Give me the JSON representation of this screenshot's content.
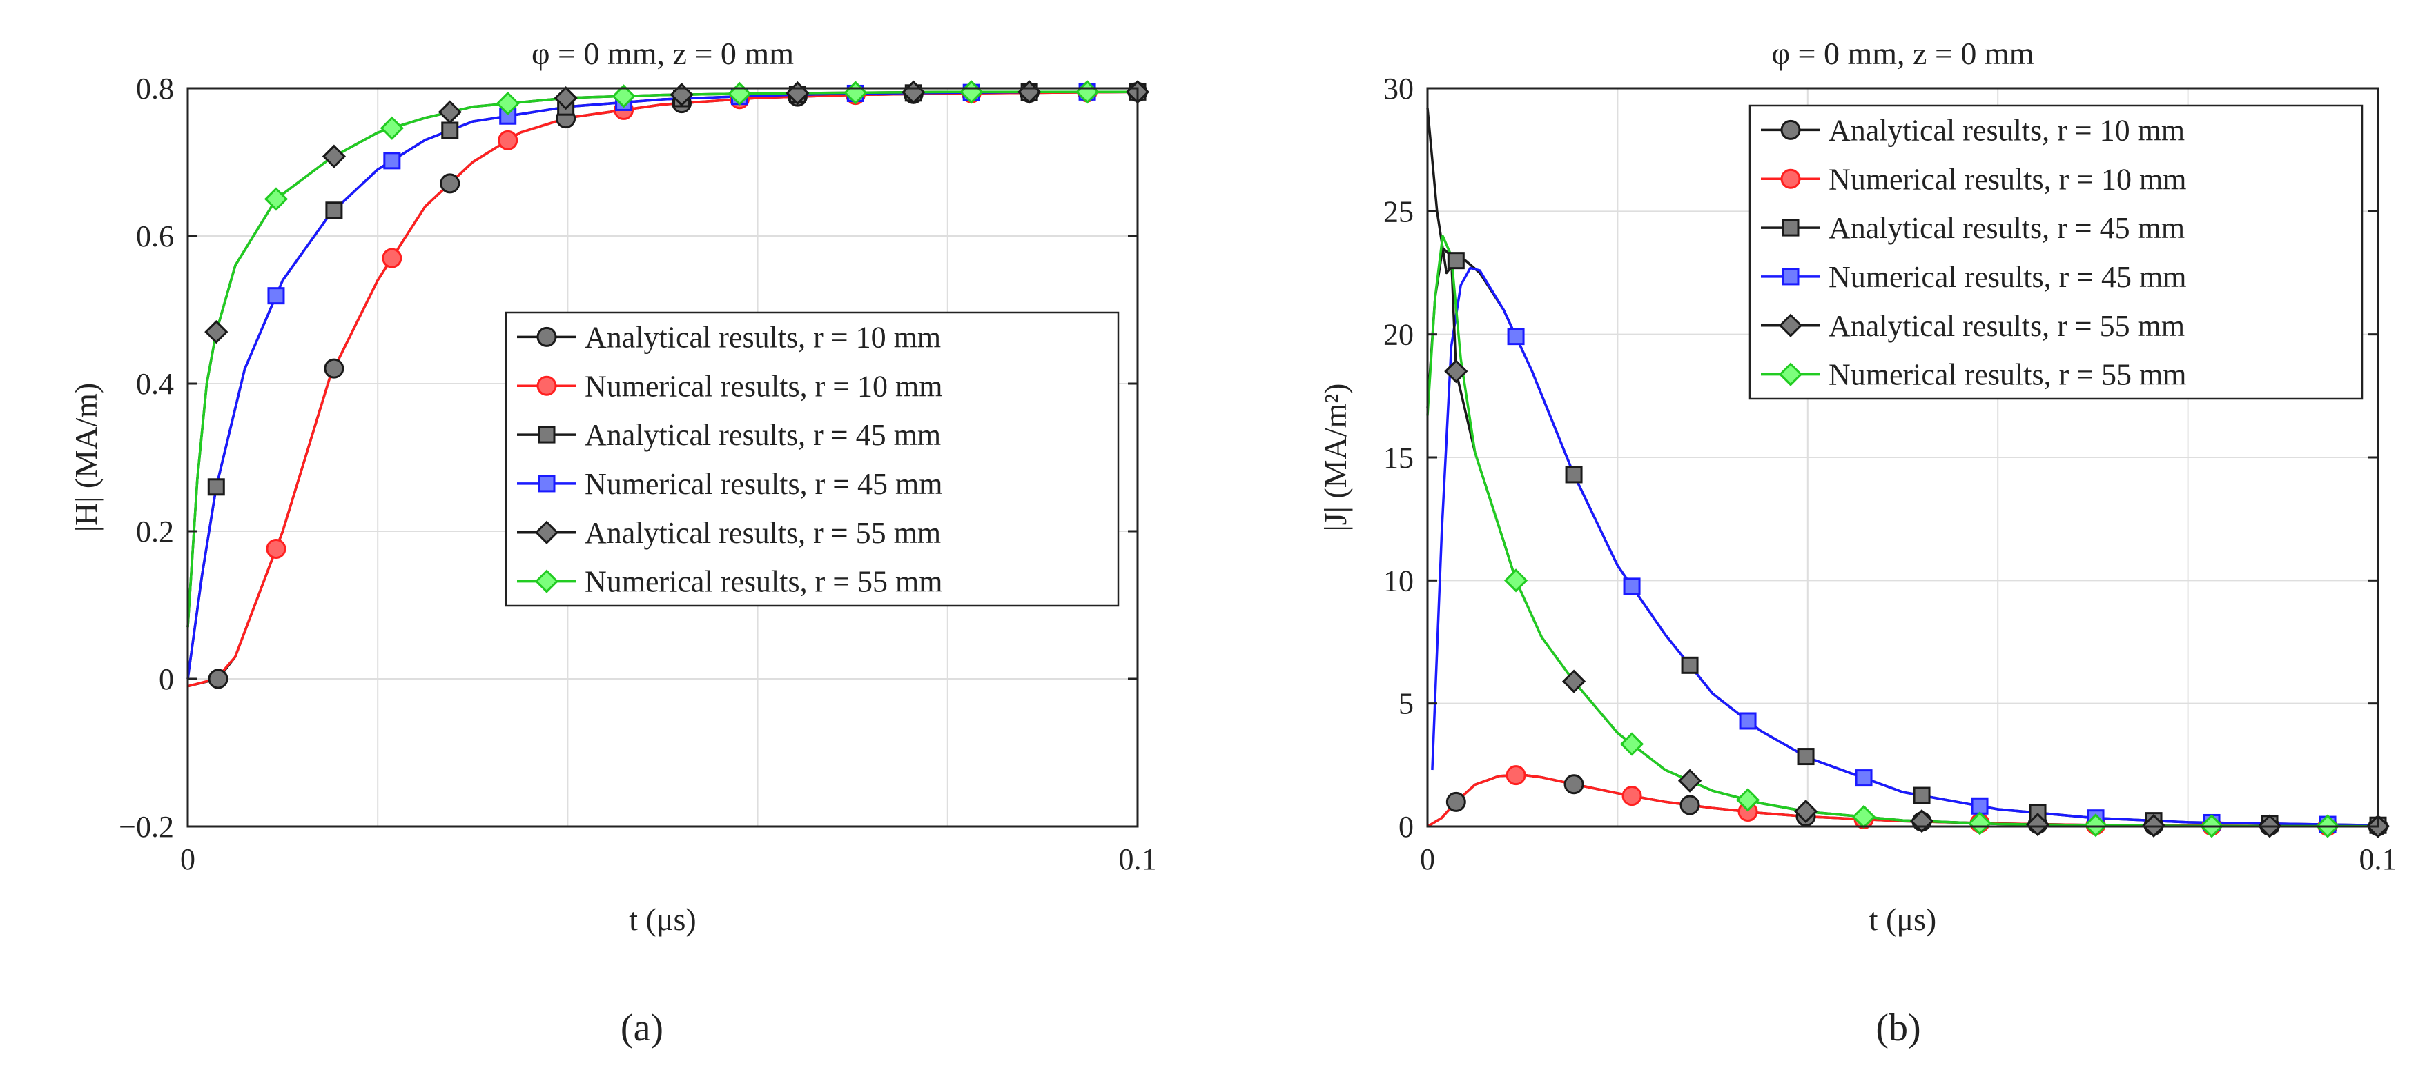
{
  "figure": {
    "colors": {
      "analytical_edge": "#1a1a1a",
      "gray_fill": "#7a7a7a",
      "red": "#ff2020",
      "red_fill": "#ff6666",
      "blue": "#1a1aff",
      "blue_fill": "#6f7cff",
      "green": "#22cc22",
      "green_fill": "#7cff7c",
      "grid": "#dedede"
    }
  },
  "chart_data": [
    {
      "type": "line",
      "panel_label": "(a)",
      "panel_letter": "a",
      "title": "φ = 0 mm, z = 0 mm",
      "xlabel": "t (μs)",
      "ylabel": "|H| (MA/m)",
      "xlim": [
        0,
        0.1
      ],
      "ylim": [
        -0.2,
        0.8
      ],
      "x_ticks": [
        0,
        0.1
      ],
      "y_ticks": [
        -0.2,
        0,
        0.2,
        0.4,
        0.6,
        0.8
      ],
      "x_tick_labels": [
        "0",
        "0.1"
      ],
      "y_tick_labels": [
        "−0.2",
        "0",
        "0.2",
        "0.4",
        "0.6",
        "0.8"
      ],
      "x_grid": [
        0.02,
        0.04,
        0.06,
        0.08,
        0.1
      ],
      "legend_position": "right",
      "series": [
        {
          "name": "Analytical results, r = 10 mm",
          "marker": "circle",
          "line": "#1a1a1a",
          "fill": "#7a7a7a",
          "marker_x": [
            0.0032,
            0.0154,
            0.0276,
            0.0398,
            0.052,
            0.0642,
            0.0764,
            0.0886,
            0.1
          ],
          "x": [
            0,
            0.0032,
            0.005,
            0.01,
            0.015,
            0.02,
            0.025,
            0.03,
            0.035,
            0.04,
            0.05,
            0.06,
            0.07,
            0.08,
            0.09,
            0.1
          ],
          "y": [
            -0.01,
            0.0,
            0.03,
            0.2,
            0.41,
            0.54,
            0.64,
            0.7,
            0.74,
            0.76,
            0.778,
            0.787,
            0.791,
            0.793,
            0.794,
            0.795
          ]
        },
        {
          "name": "Numerical results, r = 10 mm",
          "marker": "circle",
          "line": "#ff2020",
          "fill": "#ff6666",
          "marker_x": [
            0.0093,
            0.0215,
            0.0337,
            0.0459,
            0.0581,
            0.0703,
            0.0825,
            0.0947
          ],
          "x": [
            0,
            0.003,
            0.005,
            0.01,
            0.015,
            0.02,
            0.025,
            0.03,
            0.035,
            0.04,
            0.05,
            0.06,
            0.07,
            0.08,
            0.09,
            0.1
          ],
          "y": [
            -0.01,
            0.0,
            0.03,
            0.2,
            0.41,
            0.54,
            0.64,
            0.7,
            0.74,
            0.76,
            0.778,
            0.787,
            0.791,
            0.793,
            0.794,
            0.795
          ]
        },
        {
          "name": "Analytical results, r = 45 mm",
          "marker": "square",
          "line": "#1a1a1a",
          "fill": "#7a7a7a",
          "marker_x": [
            0.003,
            0.0154,
            0.0276,
            0.0398,
            0.052,
            0.0642,
            0.0764,
            0.0886,
            0.1
          ],
          "x": [
            0,
            0.0015,
            0.003,
            0.006,
            0.01,
            0.015,
            0.02,
            0.025,
            0.03,
            0.04,
            0.05,
            0.06,
            0.07,
            0.08,
            0.09,
            0.1
          ],
          "y": [
            0.0,
            0.14,
            0.26,
            0.42,
            0.54,
            0.63,
            0.69,
            0.73,
            0.755,
            0.775,
            0.785,
            0.79,
            0.793,
            0.794,
            0.795,
            0.795
          ]
        },
        {
          "name": "Numerical results, r = 45 mm",
          "marker": "square",
          "line": "#1a1aff",
          "fill": "#6f7cff",
          "marker_x": [
            0.0093,
            0.0215,
            0.0337,
            0.0459,
            0.0581,
            0.0703,
            0.0825,
            0.0947
          ],
          "x": [
            0,
            0.0015,
            0.003,
            0.006,
            0.01,
            0.015,
            0.02,
            0.025,
            0.03,
            0.04,
            0.05,
            0.06,
            0.07,
            0.08,
            0.09,
            0.1
          ],
          "y": [
            0.0,
            0.14,
            0.26,
            0.42,
            0.54,
            0.63,
            0.69,
            0.73,
            0.755,
            0.775,
            0.785,
            0.79,
            0.793,
            0.794,
            0.795,
            0.795
          ]
        },
        {
          "name": "Analytical results, r = 55 mm",
          "marker": "diamond",
          "line": "#1a1a1a",
          "fill": "#7a7a7a",
          "marker_x": [
            0.003,
            0.0154,
            0.0276,
            0.0398,
            0.052,
            0.0642,
            0.0764,
            0.0886,
            0.1
          ],
          "x": [
            0,
            0.001,
            0.002,
            0.003,
            0.005,
            0.0093,
            0.015,
            0.02,
            0.025,
            0.03,
            0.04,
            0.05,
            0.06,
            0.07,
            0.08,
            0.1
          ],
          "y": [
            0.07,
            0.27,
            0.4,
            0.47,
            0.56,
            0.65,
            0.705,
            0.74,
            0.76,
            0.775,
            0.787,
            0.791,
            0.793,
            0.794,
            0.795,
            0.795
          ]
        },
        {
          "name": "Numerical results, r = 55 mm",
          "marker": "diamond",
          "line": "#22cc22",
          "fill": "#7cff7c",
          "marker_x": [
            0.0093,
            0.0215,
            0.0337,
            0.0459,
            0.0581,
            0.0703,
            0.0825,
            0.0947
          ],
          "x": [
            0,
            0.001,
            0.002,
            0.003,
            0.005,
            0.0093,
            0.015,
            0.02,
            0.025,
            0.03,
            0.04,
            0.05,
            0.06,
            0.07,
            0.08,
            0.1
          ],
          "y": [
            0.07,
            0.27,
            0.4,
            0.47,
            0.56,
            0.65,
            0.705,
            0.74,
            0.76,
            0.775,
            0.787,
            0.791,
            0.793,
            0.794,
            0.795,
            0.795
          ]
        }
      ]
    },
    {
      "type": "line",
      "panel_label": "(b)",
      "panel_letter": "b",
      "title": "φ = 0 mm, z = 0 mm",
      "xlabel": "t (μs)",
      "ylabel": "|J| (MA/m²)",
      "xlim": [
        0,
        0.1
      ],
      "ylim": [
        0,
        30
      ],
      "x_ticks": [
        0,
        0.1
      ],
      "y_ticks": [
        0,
        5,
        10,
        15,
        20,
        25,
        30
      ],
      "x_tick_labels": [
        "0",
        "0.1"
      ],
      "y_tick_labels": [
        "0",
        "5",
        "10",
        "15",
        "20",
        "25",
        "30"
      ],
      "x_grid": [
        0.02,
        0.04,
        0.06,
        0.08,
        0.1
      ],
      "legend_position": "top-right",
      "series": [
        {
          "name": "Analytical results, r = 10 mm",
          "marker": "circle",
          "line": "#1a1a1a",
          "fill": "#7a7a7a",
          "marker_x": [
            0.003,
            0.0154,
            0.0276,
            0.0398,
            0.052,
            0.0642,
            0.0764,
            0.0886,
            0.1
          ],
          "x": [
            0,
            0.0015,
            0.003,
            0.005,
            0.0075,
            0.01,
            0.012,
            0.015,
            0.02,
            0.025,
            0.03,
            0.035,
            0.04,
            0.05,
            0.06,
            0.07,
            0.08,
            0.1
          ],
          "y": [
            0,
            0.35,
            1.0,
            1.7,
            2.05,
            2.1,
            2.0,
            1.75,
            1.35,
            1.0,
            0.75,
            0.55,
            0.4,
            0.22,
            0.12,
            0.06,
            0.03,
            0.01
          ]
        },
        {
          "name": "Numerical results, r = 10 mm",
          "marker": "circle",
          "line": "#ff2020",
          "fill": "#ff6666",
          "marker_x": [
            0.0093,
            0.0215,
            0.0337,
            0.0459,
            0.0581,
            0.0703,
            0.0825,
            0.0947
          ],
          "x": [
            0,
            0.0015,
            0.003,
            0.005,
            0.0075,
            0.01,
            0.012,
            0.015,
            0.02,
            0.025,
            0.03,
            0.035,
            0.04,
            0.05,
            0.06,
            0.07,
            0.08,
            0.1
          ],
          "y": [
            0,
            0.35,
            1.0,
            1.7,
            2.05,
            2.1,
            2.0,
            1.75,
            1.35,
            1.0,
            0.75,
            0.55,
            0.4,
            0.22,
            0.12,
            0.06,
            0.03,
            0.01
          ]
        },
        {
          "name": "Analytical results, r = 45 mm",
          "marker": "square",
          "line": "#1a1a1a",
          "fill": "#7a7a7a",
          "marker_x": [
            0.003,
            0.0154,
            0.0276,
            0.0398,
            0.052,
            0.0642,
            0.0764,
            0.0886,
            0.1
          ],
          "x": [
            0,
            0.001,
            0.002,
            0.003,
            0.004,
            0.0055,
            0.008,
            0.011,
            0.0154,
            0.02,
            0.025,
            0.03,
            0.035,
            0.04,
            0.05,
            0.06,
            0.07,
            0.08,
            0.1
          ],
          "y": [
            29.2,
            25.0,
            22.5,
            23.0,
            23.0,
            22.5,
            21.0,
            18.5,
            14.3,
            10.6,
            7.8,
            5.4,
            3.9,
            2.8,
            1.4,
            0.7,
            0.35,
            0.17,
            0.05
          ]
        },
        {
          "name": "Numerical results, r = 45 mm",
          "marker": "square",
          "line": "#1a1aff",
          "fill": "#6f7cff",
          "marker_x": [
            0.0093,
            0.0215,
            0.0337,
            0.0459,
            0.0581,
            0.0703,
            0.0825,
            0.0947
          ],
          "x": [
            0.0005,
            0.0015,
            0.0025,
            0.0035,
            0.0045,
            0.0055,
            0.008,
            0.011,
            0.0154,
            0.02,
            0.025,
            0.03,
            0.035,
            0.04,
            0.05,
            0.06,
            0.07,
            0.08,
            0.1
          ],
          "y": [
            2.3,
            12.0,
            19.5,
            22.0,
            22.7,
            22.6,
            21.0,
            18.5,
            14.3,
            10.6,
            7.8,
            5.4,
            3.9,
            2.8,
            1.4,
            0.7,
            0.35,
            0.17,
            0.05
          ]
        },
        {
          "name": "Analytical results, r = 55 mm",
          "marker": "diamond",
          "line": "#1a1a1a",
          "fill": "#7a7a7a",
          "marker_x": [
            0.003,
            0.0154,
            0.0276,
            0.0398,
            0.052,
            0.0642,
            0.0764,
            0.0886,
            0.1
          ],
          "x": [
            0,
            0.0008,
            0.0016,
            0.0025,
            0.003,
            0.005,
            0.008,
            0.0093,
            0.012,
            0.0154,
            0.02,
            0.025,
            0.03,
            0.035,
            0.04,
            0.05,
            0.06,
            0.07,
            0.08,
            0.1
          ],
          "y": [
            17.0,
            21.5,
            23.5,
            23.2,
            18.5,
            15.2,
            11.6,
            10.0,
            7.7,
            5.9,
            3.8,
            2.3,
            1.45,
            0.95,
            0.6,
            0.25,
            0.1,
            0.05,
            0.02,
            0.01
          ]
        },
        {
          "name": "Numerical results, r = 55 mm",
          "marker": "diamond",
          "line": "#22cc22",
          "fill": "#7cff7c",
          "marker_x": [
            0.0093,
            0.0215,
            0.0337,
            0.0459,
            0.0581,
            0.0703,
            0.0825,
            0.0947
          ],
          "x": [
            0,
            0.0008,
            0.0016,
            0.0025,
            0.0035,
            0.005,
            0.008,
            0.0093,
            0.012,
            0.0154,
            0.02,
            0.025,
            0.03,
            0.035,
            0.04,
            0.05,
            0.06,
            0.07,
            0.08,
            0.1
          ],
          "y": [
            16.7,
            21.5,
            24.0,
            23.2,
            19.0,
            15.2,
            11.6,
            10.0,
            7.7,
            5.9,
            3.8,
            2.3,
            1.45,
            0.95,
            0.6,
            0.25,
            0.1,
            0.05,
            0.02,
            0.01
          ]
        }
      ]
    }
  ]
}
